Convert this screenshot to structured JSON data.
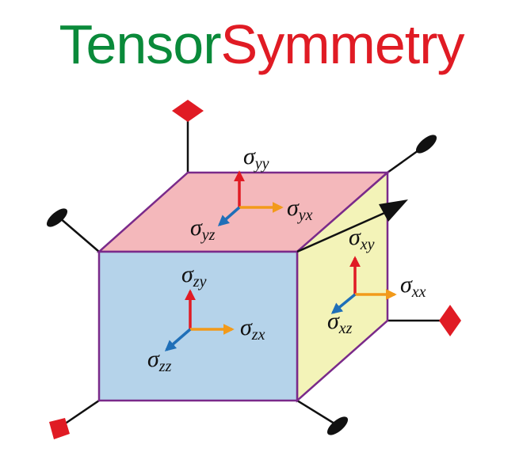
{
  "title": {
    "part1": "Tensor",
    "part2": "Symmetry",
    "part1_color": "#0a8a3a",
    "part2_color": "#e01b24"
  },
  "colors": {
    "top_face": "#f4b8bb",
    "front_face": "#b5d3ea",
    "side_face": "#f3f3b8",
    "cube_edge": "#7a2a8a",
    "arrow_normal": "#e01b24",
    "arrow_shear_1": "#f29a1a",
    "arrow_shear_2": "#1f6fb8",
    "axis_line": "#111111",
    "diamond_marker": "#e01b24",
    "ellipse_marker": "#111111"
  },
  "labels": {
    "s_yy": {
      "sym": "σ",
      "sub": "yy"
    },
    "s_yx": {
      "sym": "σ",
      "sub": "yx"
    },
    "s_yz": {
      "sym": "σ",
      "sub": "yz"
    },
    "s_zy": {
      "sym": "σ",
      "sub": "zy"
    },
    "s_zx": {
      "sym": "σ",
      "sub": "zx"
    },
    "s_zz": {
      "sym": "σ",
      "sub": "zz"
    },
    "s_xy": {
      "sym": "σ",
      "sub": "xy"
    },
    "s_xx": {
      "sym": "σ",
      "sub": "xx"
    },
    "s_xz": {
      "sym": "σ",
      "sub": "xz"
    }
  }
}
